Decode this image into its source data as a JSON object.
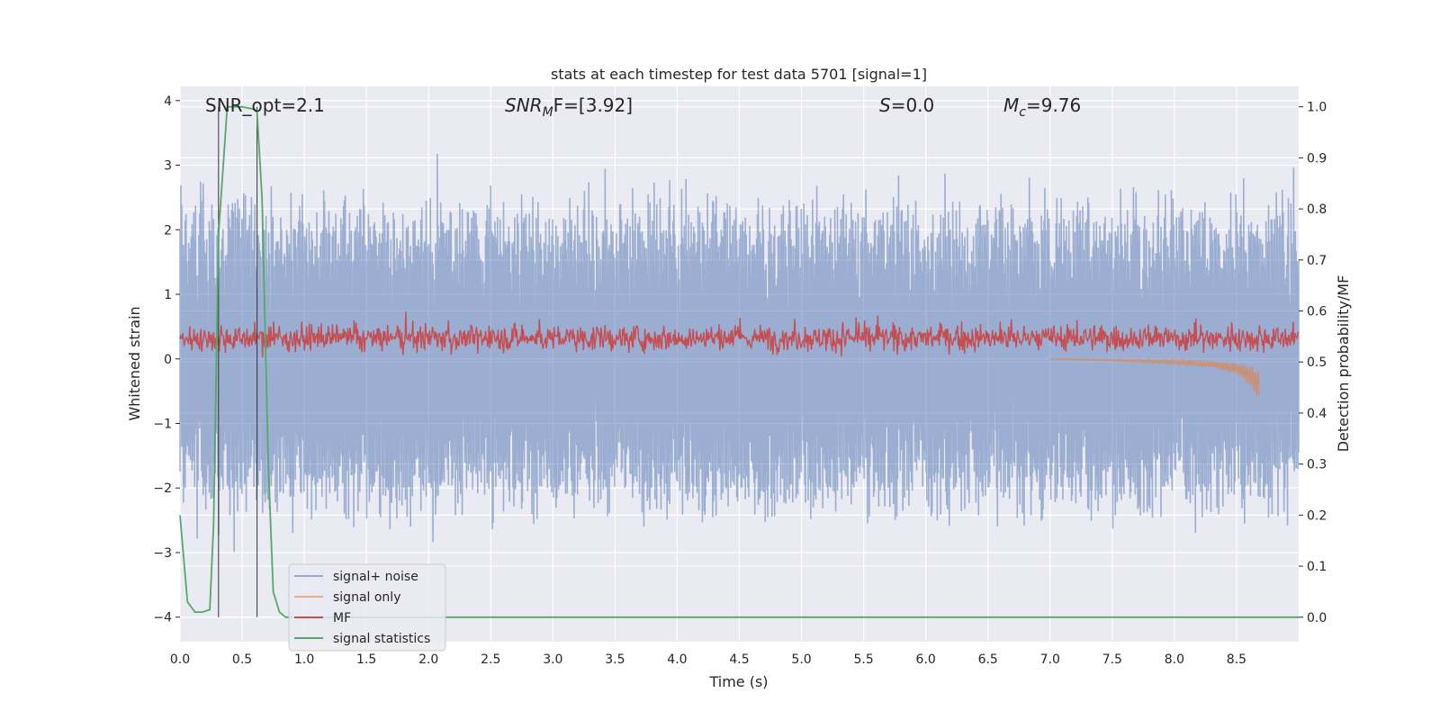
{
  "chart_data": {
    "type": "line",
    "title": "stats at each timestep for test data 5701 [signal=1]",
    "xlabel": "Time (s)",
    "ylabel_left": "Whitened strain",
    "ylabel_right": "Detection probability/MF",
    "xlim": [
      0.0,
      9.0
    ],
    "ylim_left": [
      -4.38,
      4.22
    ],
    "ylim_right": [
      -0.048,
      1.04
    ],
    "x_ticks": [
      "0.0",
      "0.5",
      "1.0",
      "1.5",
      "2.0",
      "2.5",
      "3.0",
      "3.5",
      "4.0",
      "4.5",
      "5.0",
      "5.5",
      "6.0",
      "6.5",
      "7.0",
      "7.5",
      "8.0",
      "8.5"
    ],
    "y_ticks_left": [
      "−4",
      "−3",
      "−2",
      "−1",
      "0",
      "1",
      "2",
      "3",
      "4"
    ],
    "y_ticks_right": [
      "0.0",
      "0.1",
      "0.2",
      "0.3",
      "0.4",
      "0.5",
      "0.6",
      "0.7",
      "0.8",
      "0.9",
      "1.0"
    ],
    "grid": true,
    "legend_position": "lower-left",
    "annotations": {
      "snr_opt": "SNR_opt=2.1",
      "snr_mf_main": "SNR",
      "snr_mf_sub": "M",
      "snr_mf_rest": "F=[3.92]",
      "s_var": "S",
      "s_rest": "=0.0",
      "mc_var": "M",
      "mc_sub": "c",
      "mc_rest": "=9.76"
    },
    "vertical_markers_x": [
      0.31,
      0.62
    ],
    "series": [
      {
        "name": "signal+ noise",
        "color": "#4c72b0",
        "axis": "left",
        "pattern": "noise",
        "amplitude_range": [
          -3.6,
          3.9
        ]
      },
      {
        "name": "signal only",
        "color": "#dd8452",
        "axis": "left",
        "pattern": "chirp",
        "x": [
          7.0,
          7.5,
          8.0,
          8.3,
          8.5,
          8.6,
          8.68
        ],
        "values": [
          0.0,
          -0.02,
          -0.05,
          -0.08,
          -0.15,
          -0.25,
          -0.4
        ]
      },
      {
        "name": "MF",
        "color": "#c44e52",
        "axis": "left",
        "pattern": "noise",
        "amplitude_range": [
          0.0,
          1.0
        ]
      },
      {
        "name": "signal statistics",
        "color": "#55a868",
        "axis": "right",
        "x": [
          0.0,
          0.06,
          0.12,
          0.18,
          0.24,
          0.27,
          0.31,
          0.38,
          0.5,
          0.6,
          0.62,
          0.66,
          0.71,
          0.75,
          0.8,
          0.85,
          9.0
        ],
        "values": [
          0.2,
          0.03,
          0.01,
          0.01,
          0.015,
          0.18,
          0.75,
          1.0,
          1.0,
          0.995,
          0.99,
          0.82,
          0.3,
          0.05,
          0.01,
          0.0,
          0.0
        ]
      }
    ]
  }
}
